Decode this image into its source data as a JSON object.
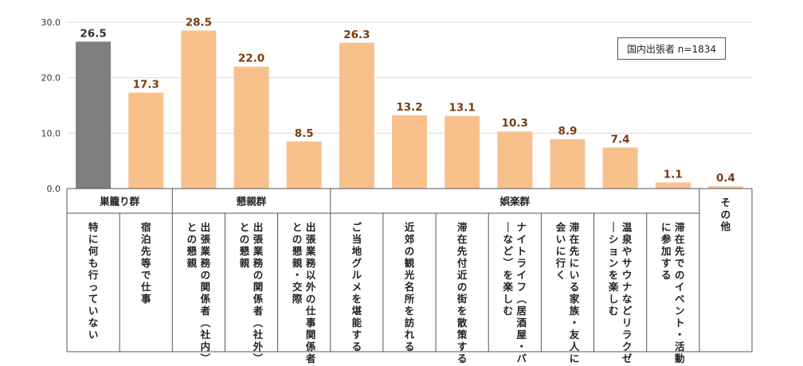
{
  "chart_data": {
    "type": "bar",
    "ylim": [
      0,
      30
    ],
    "yticks": [
      "0.0",
      "10.0",
      "20.0",
      "30.0"
    ],
    "note": "国内出張者 n=1834",
    "groups": [
      {
        "label": "巣籠り群",
        "count": 2
      },
      {
        "label": "懇親群",
        "count": 3
      },
      {
        "label": "娯楽群",
        "count": 7
      },
      {
        "label": "",
        "count": 1
      }
    ],
    "categories": [
      "特に何も行っていない",
      "宿泊先等で仕事",
      "出張業務の関係者（社内）との懇親",
      "出張業務の関係者（社外）との懇親",
      "出張業務以外の仕事関係者との懇親・交際",
      "ご当地グルメを堪能する",
      "近郊の観光名所を訪れる",
      "滞在先付近の街を散策する",
      "ナイトライフ（居酒屋・バーなど）を楽しむ",
      "滞在先にいる家族・友人に会いに行く",
      "温泉やサウナなどリラクゼーションを楽しむ",
      "滞在先でのイベント・活動に参加する",
      "その他"
    ],
    "values": [
      26.5,
      17.3,
      28.5,
      22.0,
      8.5,
      26.3,
      13.2,
      13.1,
      10.3,
      8.9,
      7.4,
      1.1,
      0.4
    ],
    "value_labels": [
      "26.5",
      "17.3",
      "28.5",
      "22.0",
      "8.5",
      "26.3",
      "13.2",
      "13.1",
      "10.3",
      "8.9",
      "7.4",
      "1.1",
      "0.4"
    ],
    "colors": {
      "highlight": "#7f7f7f",
      "bar": "#f8c08b",
      "grid": "#d9d9d9",
      "axis": "#555555",
      "value_text": "#7a3b12"
    },
    "highlight_index": 0
  }
}
